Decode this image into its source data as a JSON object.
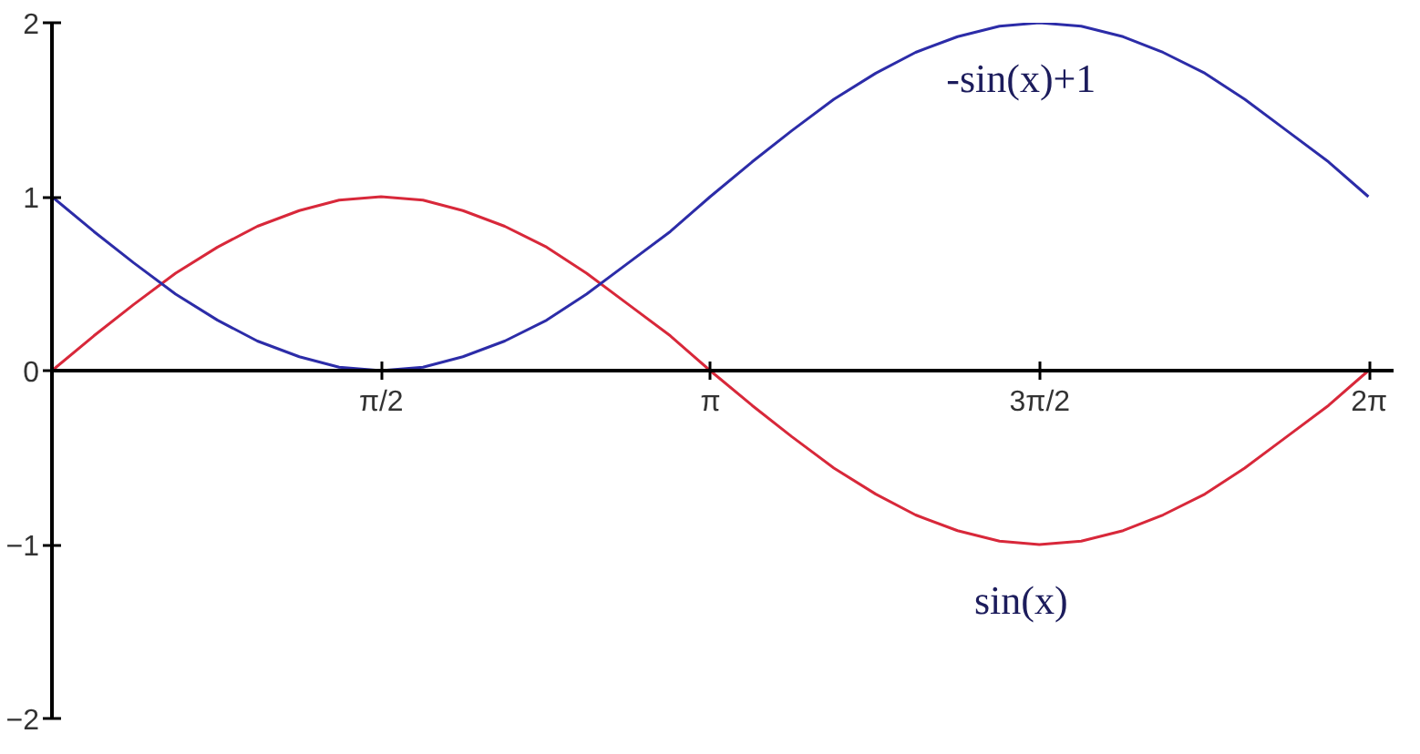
{
  "chart_data": {
    "type": "line",
    "x": [
      0.0,
      0.2,
      0.39,
      0.59,
      0.79,
      0.98,
      1.18,
      1.37,
      1.57,
      1.77,
      1.96,
      2.16,
      2.36,
      2.55,
      2.75,
      2.95,
      3.14,
      3.34,
      3.53,
      3.73,
      3.93,
      4.12,
      4.32,
      4.52,
      4.71,
      4.91,
      5.11,
      5.3,
      5.5,
      5.69,
      5.89,
      6.09,
      6.28
    ],
    "series": [
      {
        "name": "sin(x)",
        "color": "#d8283a",
        "values": [
          0.0,
          0.2,
          0.38,
          0.56,
          0.71,
          0.83,
          0.92,
          0.98,
          1.0,
          0.98,
          0.92,
          0.83,
          0.71,
          0.56,
          0.38,
          0.2,
          0.0,
          -0.2,
          -0.38,
          -0.56,
          -0.71,
          -0.83,
          -0.92,
          -0.98,
          -1.0,
          -0.98,
          -0.92,
          -0.83,
          -0.71,
          -0.56,
          -0.38,
          -0.2,
          0.0
        ]
      },
      {
        "name": "-sin(x)+1",
        "color": "#2c2ca8",
        "values": [
          1.0,
          0.8,
          0.62,
          0.44,
          0.29,
          0.17,
          0.08,
          0.02,
          0.0,
          0.02,
          0.08,
          0.17,
          0.29,
          0.44,
          0.62,
          0.8,
          1.0,
          1.2,
          1.38,
          1.56,
          1.71,
          1.83,
          1.92,
          1.98,
          2.0,
          1.98,
          1.92,
          1.83,
          1.71,
          1.56,
          1.38,
          1.2,
          1.0
        ]
      }
    ],
    "xlim": [
      0,
      6.4
    ],
    "xticks": [
      {
        "value": 1.5708,
        "label": "π/2"
      },
      {
        "value": 3.1416,
        "label": "π"
      },
      {
        "value": 4.7124,
        "label": "3π/2"
      },
      {
        "value": 6.2832,
        "label": "2π"
      }
    ],
    "ylim": [
      -2,
      2
    ],
    "yticks": [
      -2,
      -1,
      0,
      1,
      2
    ],
    "line_style": "solid"
  }
}
